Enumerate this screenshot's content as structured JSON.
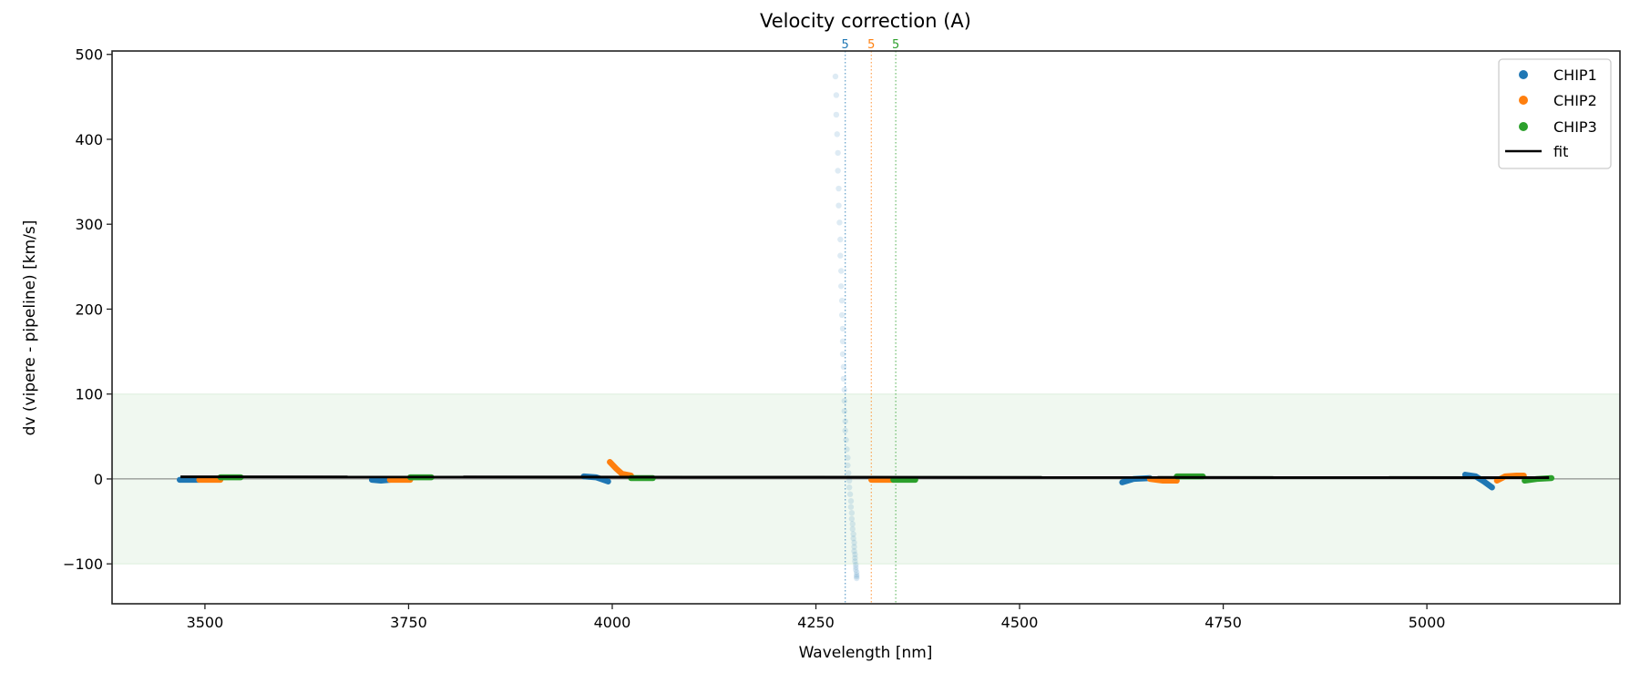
{
  "chart_data": {
    "type": "scatter",
    "title": "Velocity correction (A)",
    "xlabel": "Wavelength [nm]",
    "ylabel": "dv (vipere - pipeline) [km/s]",
    "xlim": [
      3386,
      5237
    ],
    "ylim": [
      -147,
      504
    ],
    "xticks": [
      3500,
      3750,
      4000,
      4250,
      4500,
      4750,
      5000
    ],
    "yticks": [
      -100,
      0,
      100,
      200,
      300,
      400,
      500
    ],
    "ytick_labels": [
      "−100",
      "0",
      "100",
      "200",
      "300",
      "400",
      "500"
    ],
    "band": {
      "ymin": -100,
      "ymax": 100,
      "color": "#2ca02c"
    },
    "zero_line": 0,
    "colors": {
      "CHIP1": "#1f77b4",
      "CHIP2": "#ff7f0e",
      "CHIP3": "#2ca02c",
      "fit": "#000000"
    },
    "legend": {
      "placement": "top-right",
      "entries": [
        "CHIP1",
        "CHIP2",
        "CHIP3",
        "fit"
      ]
    },
    "order_markers": [
      {
        "x": 4286,
        "label": "5",
        "series": "CHIP1"
      },
      {
        "x": 4318,
        "label": "5",
        "series": "CHIP2"
      },
      {
        "x": 4348,
        "label": "5",
        "series": "CHIP3"
      }
    ],
    "series": [
      {
        "name": "CHIP1",
        "segments": [
          [
            [
              3469,
              -1
            ],
            [
              3493,
              -1
            ]
          ],
          [
            [
              3705,
              -1
            ],
            [
              3716,
              -2
            ],
            [
              3727,
              -1
            ]
          ],
          [
            [
              3965,
              3
            ],
            [
              3980,
              2
            ],
            [
              3995,
              -3
            ]
          ],
          [
            [
              4626,
              -4
            ],
            [
              4640,
              0
            ],
            [
              4660,
              1
            ]
          ],
          [
            [
              5047,
              5
            ],
            [
              5060,
              3
            ],
            [
              5070,
              -3
            ],
            [
              5080,
              -10
            ]
          ]
        ]
      },
      {
        "name": "CHIP2",
        "segments": [
          [
            [
              3493,
              -1
            ],
            [
              3519,
              -1
            ]
          ],
          [
            [
              3727,
              -1
            ],
            [
              3752,
              -1
            ]
          ],
          [
            [
              3997,
              20
            ],
            [
              4005,
              12
            ],
            [
              4012,
              6
            ],
            [
              4023,
              4
            ]
          ],
          [
            [
              4318,
              -1
            ],
            [
              4345,
              -1
            ]
          ],
          [
            [
              4660,
              0
            ],
            [
              4676,
              -2
            ],
            [
              4693,
              -2
            ]
          ],
          [
            [
              5086,
              -2
            ],
            [
              5096,
              3
            ],
            [
              5110,
              4
            ],
            [
              5119,
              4
            ]
          ]
        ]
      },
      {
        "name": "CHIP3",
        "segments": [
          [
            [
              3519,
              2
            ],
            [
              3544,
              2
            ]
          ],
          [
            [
              3752,
              2
            ],
            [
              3778,
              2
            ]
          ],
          [
            [
              4023,
              1
            ],
            [
              4050,
              1
            ]
          ],
          [
            [
              4345,
              -1
            ],
            [
              4372,
              -1
            ]
          ],
          [
            [
              4693,
              3
            ],
            [
              4710,
              3
            ],
            [
              4725,
              3
            ]
          ],
          [
            [
              5120,
              -2
            ],
            [
              5135,
              0
            ],
            [
              5153,
              1
            ]
          ]
        ]
      }
    ],
    "fit": [
      [
        3470,
        2.5
      ],
      [
        5150,
        1.5
      ]
    ],
    "rejected_points": [
      [
        4274,
        474
      ],
      [
        4275,
        452
      ],
      [
        4275,
        429
      ],
      [
        4276,
        406
      ],
      [
        4277,
        384
      ],
      [
        4277,
        363
      ],
      [
        4278,
        342
      ],
      [
        4278,
        322
      ],
      [
        4279,
        302
      ],
      [
        4280,
        282
      ],
      [
        4280,
        263
      ],
      [
        4281,
        245
      ],
      [
        4281,
        227
      ],
      [
        4282,
        210
      ],
      [
        4282,
        193
      ],
      [
        4283,
        177
      ],
      [
        4283,
        162
      ],
      [
        4283,
        147
      ],
      [
        4284,
        132
      ],
      [
        4284,
        118
      ],
      [
        4285,
        105
      ],
      [
        4285,
        92
      ],
      [
        4285,
        80
      ],
      [
        4286,
        68
      ],
      [
        4286,
        57
      ],
      [
        4287,
        46
      ],
      [
        4288,
        35
      ],
      [
        4289,
        25
      ],
      [
        4289,
        16
      ],
      [
        4290,
        7
      ],
      [
        4291,
        -2
      ],
      [
        4291,
        -10
      ],
      [
        4292,
        -18
      ],
      [
        4293,
        -26
      ],
      [
        4293,
        -33
      ],
      [
        4294,
        -40
      ],
      [
        4294,
        -47
      ],
      [
        4295,
        -53
      ],
      [
        4295,
        -59
      ],
      [
        4296,
        -65
      ],
      [
        4296,
        -70
      ],
      [
        4297,
        -75
      ],
      [
        4297,
        -80
      ],
      [
        4297,
        -85
      ],
      [
        4298,
        -89
      ],
      [
        4298,
        -93
      ],
      [
        4298,
        -97
      ],
      [
        4299,
        -101
      ],
      [
        4299,
        -104
      ],
      [
        4299,
        -107
      ],
      [
        4300,
        -110
      ],
      [
        4300,
        -113
      ],
      [
        4300,
        -115
      ],
      [
        4300,
        -117
      ]
    ]
  }
}
